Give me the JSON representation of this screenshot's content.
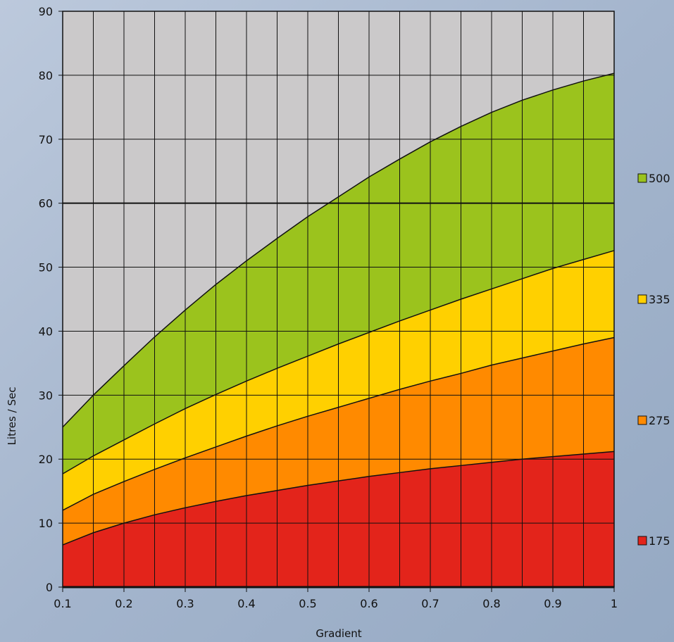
{
  "chart_data": {
    "type": "area",
    "title": "",
    "xlabel": "Gradient",
    "ylabel": "Litres / Sec",
    "xlim": [
      0.1,
      1
    ],
    "ylim": [
      0,
      90
    ],
    "x_ticks": [
      "0.1",
      "0.2",
      "0.3",
      "0.4",
      "0.5",
      "0.6",
      "0.7",
      "0.8",
      "0.9",
      "1"
    ],
    "y_ticks": [
      "0",
      "10",
      "20",
      "30",
      "40",
      "50",
      "60",
      "70",
      "80",
      "90"
    ],
    "x_minor_step": 0.05,
    "grid": true,
    "legend_position": "right",
    "x": [
      0.1,
      0.15,
      0.2,
      0.25,
      0.3,
      0.35,
      0.4,
      0.45,
      0.5,
      0.55,
      0.6,
      0.65,
      0.7,
      0.75,
      0.8,
      0.85,
      0.9,
      0.95,
      1.0
    ],
    "series": [
      {
        "name": "175",
        "color": "#e3241b",
        "values": [
          6.6,
          8.5,
          10.0,
          11.3,
          12.4,
          13.4,
          14.3,
          15.1,
          15.9,
          16.6,
          17.3,
          17.9,
          18.5,
          19.0,
          19.5,
          20.0,
          20.4,
          20.8,
          21.2
        ]
      },
      {
        "name": "275",
        "color": "#ff8a00",
        "values": [
          12.0,
          14.5,
          16.5,
          18.4,
          20.2,
          21.9,
          23.6,
          25.2,
          26.7,
          28.1,
          29.5,
          30.9,
          32.2,
          33.4,
          34.7,
          35.8,
          36.9,
          38.0,
          39.0
        ]
      },
      {
        "name": "335",
        "color": "#ffd000",
        "values": [
          17.7,
          20.5,
          23.0,
          25.5,
          27.9,
          30.1,
          32.2,
          34.2,
          36.1,
          38.0,
          39.8,
          41.6,
          43.3,
          45.0,
          46.6,
          48.2,
          49.8,
          51.2,
          52.6
        ]
      },
      {
        "name": "500",
        "color": "#9bc31d",
        "values": [
          25.0,
          30.0,
          34.6,
          39.1,
          43.3,
          47.3,
          51.0,
          54.5,
          57.9,
          61.0,
          64.1,
          66.9,
          69.6,
          72.0,
          74.2,
          76.1,
          77.7,
          79.1,
          80.3
        ]
      }
    ],
    "plot_background": "#cbc9ca",
    "outline_color": "#111111"
  }
}
